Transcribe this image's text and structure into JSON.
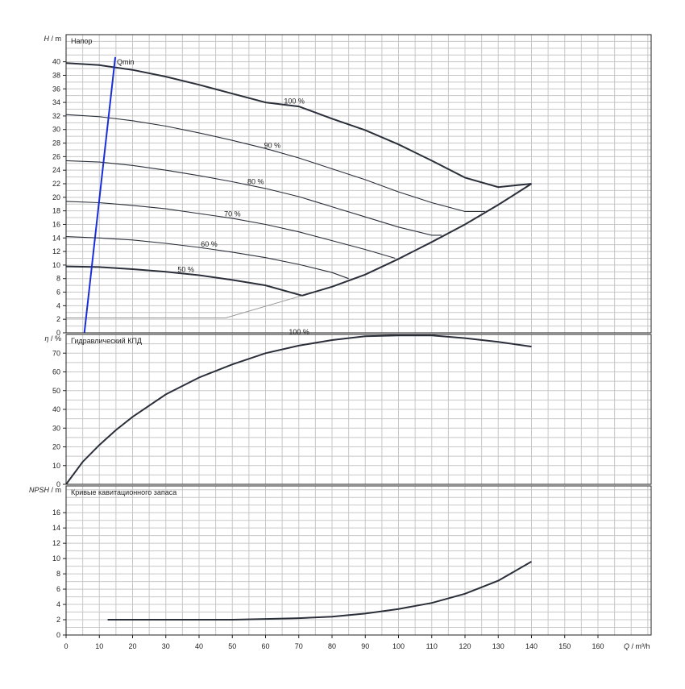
{
  "chart_data": [
    {
      "type": "line",
      "panel": "head",
      "title": "Напор",
      "ylabel_var": "H",
      "ylabel_unit": "/ m",
      "xlim": [
        0,
        176
      ],
      "ylim": [
        0,
        44
      ],
      "yticks": [
        0,
        2,
        4,
        6,
        8,
        10,
        12,
        14,
        16,
        18,
        20,
        22,
        24,
        26,
        28,
        30,
        32,
        34,
        36,
        38,
        40
      ],
      "grid": true,
      "series": [
        {
          "name": "100 %",
          "x": [
            0,
            10,
            20,
            30,
            40,
            50,
            60,
            70,
            80,
            90,
            100,
            110,
            120,
            130,
            140
          ],
          "y": [
            39.8,
            39.5,
            38.8,
            37.8,
            36.6,
            35.3,
            34.0,
            33.4,
            31.6,
            29.9,
            27.8,
            25.4,
            22.9,
            21.5,
            22.0
          ]
        },
        {
          "name": "90 %",
          "x": [
            0,
            10,
            20,
            30,
            40,
            50,
            60,
            70,
            80,
            90,
            100,
            110,
            120,
            126
          ],
          "y": [
            32.2,
            31.9,
            31.3,
            30.5,
            29.5,
            28.4,
            27.2,
            25.8,
            24.2,
            22.6,
            20.8,
            19.2,
            17.9,
            17.9
          ]
        },
        {
          "name": "80 %",
          "x": [
            0,
            10,
            20,
            30,
            40,
            50,
            60,
            70,
            80,
            90,
            100,
            110,
            113
          ],
          "y": [
            25.4,
            25.2,
            24.7,
            24.0,
            23.2,
            22.3,
            21.3,
            20.1,
            18.6,
            17.1,
            15.6,
            14.4,
            14.4
          ]
        },
        {
          "name": "70 %",
          "x": [
            0,
            10,
            20,
            30,
            40,
            50,
            60,
            70,
            80,
            90,
            99
          ],
          "y": [
            19.4,
            19.2,
            18.8,
            18.3,
            17.6,
            16.9,
            16.0,
            14.9,
            13.6,
            12.3,
            11.0
          ]
        },
        {
          "name": "60 %",
          "x": [
            0,
            10,
            20,
            30,
            40,
            50,
            60,
            70,
            80,
            85
          ],
          "y": [
            14.2,
            14.0,
            13.7,
            13.2,
            12.6,
            11.9,
            11.1,
            10.1,
            8.9,
            8.0
          ]
        },
        {
          "name": "50 %",
          "x": [
            0,
            10,
            20,
            30,
            40,
            50,
            60,
            71
          ],
          "y": [
            9.8,
            9.7,
            9.4,
            9.0,
            8.5,
            7.8,
            7.0,
            5.5
          ]
        }
      ],
      "envelope_right": {
        "x": [
          71,
          80,
          90,
          100,
          110,
          120,
          130,
          140
        ],
        "y": [
          5.5,
          6.8,
          8.6,
          10.9,
          13.4,
          16.0,
          18.9,
          22.0
        ]
      },
      "lower_line": {
        "x": [
          0,
          20,
          48,
          71
        ],
        "y": [
          2.2,
          2.2,
          2.2,
          5.5
        ]
      },
      "qmin": {
        "label": "Qmin",
        "x": [
          5.5,
          14.8
        ],
        "y": [
          0,
          39.5
        ]
      }
    },
    {
      "type": "line",
      "panel": "efficiency",
      "title": "Гидравлический КПД",
      "ylabel_var": "η",
      "ylabel_unit": "/ %",
      "xlim": [
        0,
        176
      ],
      "ylim": [
        0,
        80
      ],
      "yticks": [
        0,
        10,
        20,
        30,
        40,
        50,
        60,
        70
      ],
      "grid": true,
      "series": [
        {
          "name": "100 %",
          "x": [
            0,
            5,
            10,
            15,
            20,
            30,
            40,
            50,
            60,
            70,
            80,
            90,
            100,
            110,
            120,
            130,
            140
          ],
          "y": [
            0,
            12,
            21,
            29,
            36,
            48,
            57,
            64,
            70,
            74,
            77,
            79,
            79.5,
            79.5,
            78,
            76,
            73.5
          ]
        }
      ]
    },
    {
      "type": "line",
      "panel": "npsh",
      "title": "Кривые кавитационного запаса",
      "ylabel_var": "NPSH",
      "ylabel_unit": "/ m",
      "xlim": [
        0,
        176
      ],
      "ylim": [
        0,
        19.5
      ],
      "yticks": [
        0,
        2,
        4,
        6,
        8,
        10,
        12,
        14,
        16
      ],
      "grid": true,
      "series": [
        {
          "name": "NPSH",
          "x": [
            12.5,
            20,
            30,
            40,
            50,
            60,
            70,
            80,
            90,
            100,
            110,
            120,
            130,
            140
          ],
          "y": [
            2.0,
            2.0,
            2.0,
            2.0,
            2.0,
            2.1,
            2.2,
            2.4,
            2.8,
            3.4,
            4.2,
            5.4,
            7.1,
            9.6
          ]
        }
      ]
    }
  ],
  "x_axis": {
    "ticks": [
      0,
      10,
      20,
      30,
      40,
      50,
      60,
      70,
      80,
      90,
      100,
      110,
      120,
      130,
      140,
      150,
      160
    ],
    "var": "Q",
    "unit": "/ m³/h"
  }
}
